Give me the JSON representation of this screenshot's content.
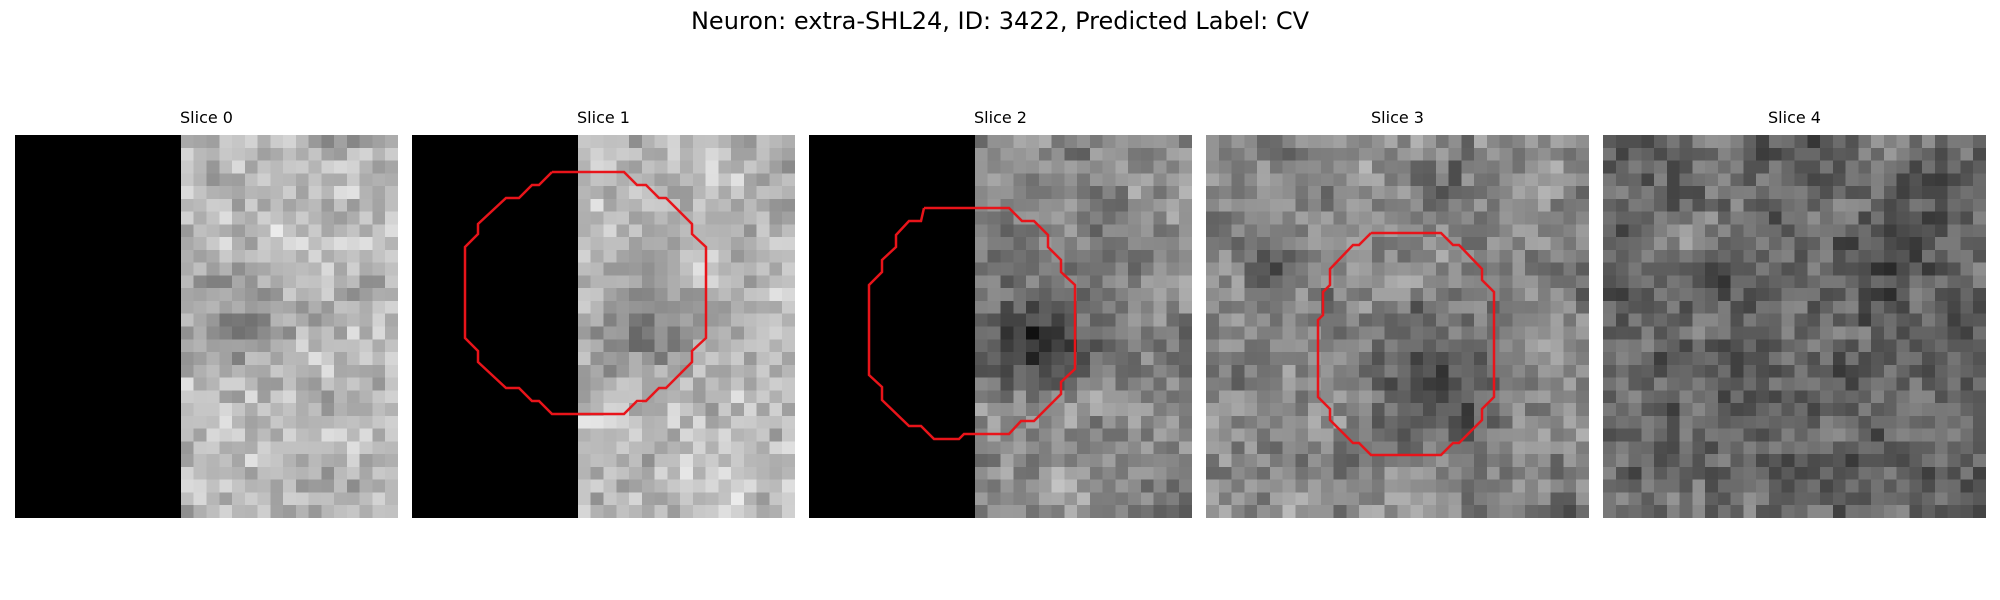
{
  "title": "Neuron: extra-SHL24, ID: 3422, Predicted Label: CV",
  "roi_color": "#e8141a",
  "slices": [
    {
      "label": "Slice 0",
      "has_black_region": true,
      "has_roi": false,
      "brightness": "light",
      "seed": 11
    },
    {
      "label": "Slice 1",
      "has_black_region": true,
      "has_roi": true,
      "brightness": "light",
      "seed": 23
    },
    {
      "label": "Slice 2",
      "has_black_region": true,
      "has_roi": true,
      "brightness": "medium",
      "seed": 37
    },
    {
      "label": "Slice 3",
      "has_black_region": false,
      "has_roi": true,
      "brightness": "medium",
      "seed": 41
    },
    {
      "label": "Slice 4",
      "has_black_region": false,
      "has_roi": false,
      "brightness": "dark",
      "seed": 59
    }
  ]
}
